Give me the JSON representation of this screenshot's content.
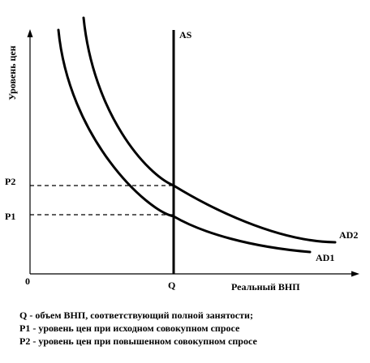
{
  "diagram": {
    "y_axis_label": "Уровень цен",
    "x_axis_label": "Реальный ВНП",
    "origin_label": "0",
    "q_label": "Q",
    "p1_label": "P1",
    "p2_label": "P2",
    "as_label": "AS",
    "ad1_label": "AD1",
    "ad2_label": "AD2"
  },
  "legend": [
    "Q - объем ВНП, соответствующий полной занятости;",
    "P1 - уровень цен при исходном совокупном спросе",
    "P2 - уровень цен при повышенном совокупном спросе"
  ]
}
